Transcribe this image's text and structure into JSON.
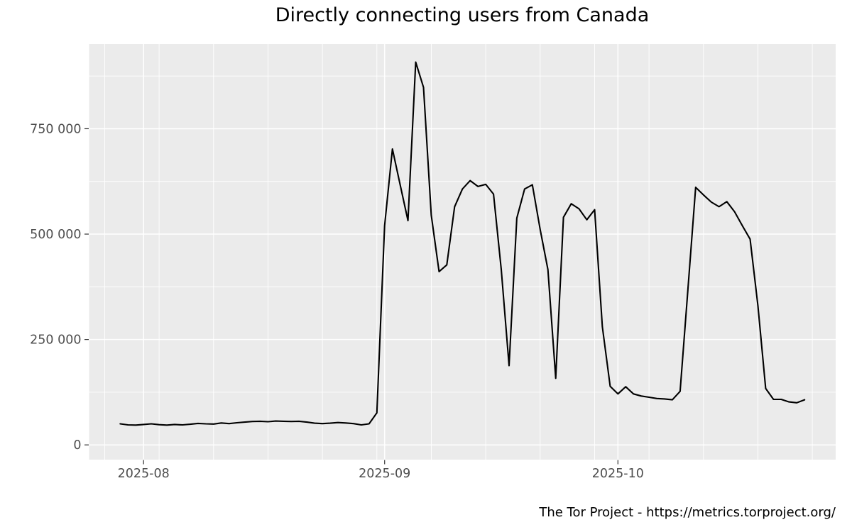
{
  "title": "Directly connecting users from Canada",
  "footer": "The Tor Project - https://metrics.torproject.org/",
  "chart_data": {
    "type": "line",
    "title": "Directly connecting users from Canada",
    "xlabel": "",
    "ylabel": "",
    "legend": "none",
    "grid": true,
    "colors": {
      "panel": "#EBEBEB",
      "grid": "#FFFFFF",
      "line": "#000000",
      "axis_text": "#4D4D4D",
      "tick_mark": "#333333"
    },
    "ylim": [
      -35000,
      951000
    ],
    "xlim": [
      "2025-07-25",
      "2025-10-29"
    ],
    "y_ticks": [
      0,
      250000,
      500000,
      750000
    ],
    "y_tick_labels": [
      "0",
      "250 000",
      "500 000",
      "750 000"
    ],
    "y_minor_ticks": [
      125000,
      375000,
      625000,
      875000
    ],
    "x_tick_dates": [
      "2025-08-01",
      "2025-09-01",
      "2025-10-01"
    ],
    "x_tick_labels": [
      "2025-08",
      "2025-09",
      "2025-10"
    ],
    "x_minor_dates": [
      "2025-07-27",
      "2025-08-03",
      "2025-08-10",
      "2025-08-17",
      "2025-08-24",
      "2025-08-31",
      "2025-09-07",
      "2025-09-14",
      "2025-09-21",
      "2025-09-28",
      "2025-10-05",
      "2025-10-12",
      "2025-10-19",
      "2025-10-26"
    ],
    "series": [
      {
        "name": "directly-connecting-users",
        "dates": [
          "2025-07-29",
          "2025-07-30",
          "2025-07-31",
          "2025-08-01",
          "2025-08-02",
          "2025-08-03",
          "2025-08-04",
          "2025-08-05",
          "2025-08-06",
          "2025-08-07",
          "2025-08-08",
          "2025-08-09",
          "2025-08-10",
          "2025-08-11",
          "2025-08-12",
          "2025-08-13",
          "2025-08-14",
          "2025-08-15",
          "2025-08-16",
          "2025-08-17",
          "2025-08-18",
          "2025-08-19",
          "2025-08-20",
          "2025-08-21",
          "2025-08-22",
          "2025-08-23",
          "2025-08-24",
          "2025-08-25",
          "2025-08-26",
          "2025-08-27",
          "2025-08-28",
          "2025-08-29",
          "2025-08-30",
          "2025-08-31",
          "2025-09-01",
          "2025-09-02",
          "2025-09-03",
          "2025-09-04",
          "2025-09-05",
          "2025-09-06",
          "2025-09-07",
          "2025-09-08",
          "2025-09-09",
          "2025-09-10",
          "2025-09-11",
          "2025-09-12",
          "2025-09-13",
          "2025-09-14",
          "2025-09-15",
          "2025-09-16",
          "2025-09-17",
          "2025-09-18",
          "2025-09-19",
          "2025-09-20",
          "2025-09-21",
          "2025-09-22",
          "2025-09-23",
          "2025-09-24",
          "2025-09-25",
          "2025-09-26",
          "2025-09-27",
          "2025-09-28",
          "2025-09-29",
          "2025-09-30",
          "2025-10-01",
          "2025-10-02",
          "2025-10-03",
          "2025-10-04",
          "2025-10-05",
          "2025-10-06",
          "2025-10-07",
          "2025-10-08",
          "2025-10-09",
          "2025-10-10",
          "2025-10-11",
          "2025-10-12",
          "2025-10-13",
          "2025-10-14",
          "2025-10-15",
          "2025-10-16",
          "2025-10-17",
          "2025-10-18",
          "2025-10-19",
          "2025-10-20",
          "2025-10-21",
          "2025-10-22",
          "2025-10-23",
          "2025-10-24",
          "2025-10-25"
        ],
        "values": [
          50000,
          47500,
          47000,
          48500,
          50000,
          48000,
          47000,
          48500,
          47500,
          49000,
          51000,
          50000,
          49500,
          52000,
          50500,
          52500,
          54000,
          55500,
          56000,
          55000,
          56500,
          56000,
          55500,
          56000,
          54000,
          51500,
          50500,
          51500,
          53000,
          52000,
          50500,
          47500,
          50000,
          76000,
          520000,
          702000,
          617000,
          532000,
          908000,
          848000,
          545000,
          411000,
          427000,
          565000,
          607000,
          627000,
          613000,
          618000,
          595000,
          416000,
          188000,
          538000,
          607000,
          617000,
          511000,
          416000,
          158000,
          540000,
          572000,
          560000,
          534000,
          558000,
          280000,
          139000,
          121000,
          138000,
          121000,
          116000,
          113000,
          110000,
          109000,
          107000,
          127000,
          369000,
          611000,
          593000,
          576000,
          565000,
          577000,
          553000,
          520000,
          488000,
          330000,
          134000,
          108000,
          108000,
          102000,
          100000,
          107000
        ]
      }
    ]
  }
}
